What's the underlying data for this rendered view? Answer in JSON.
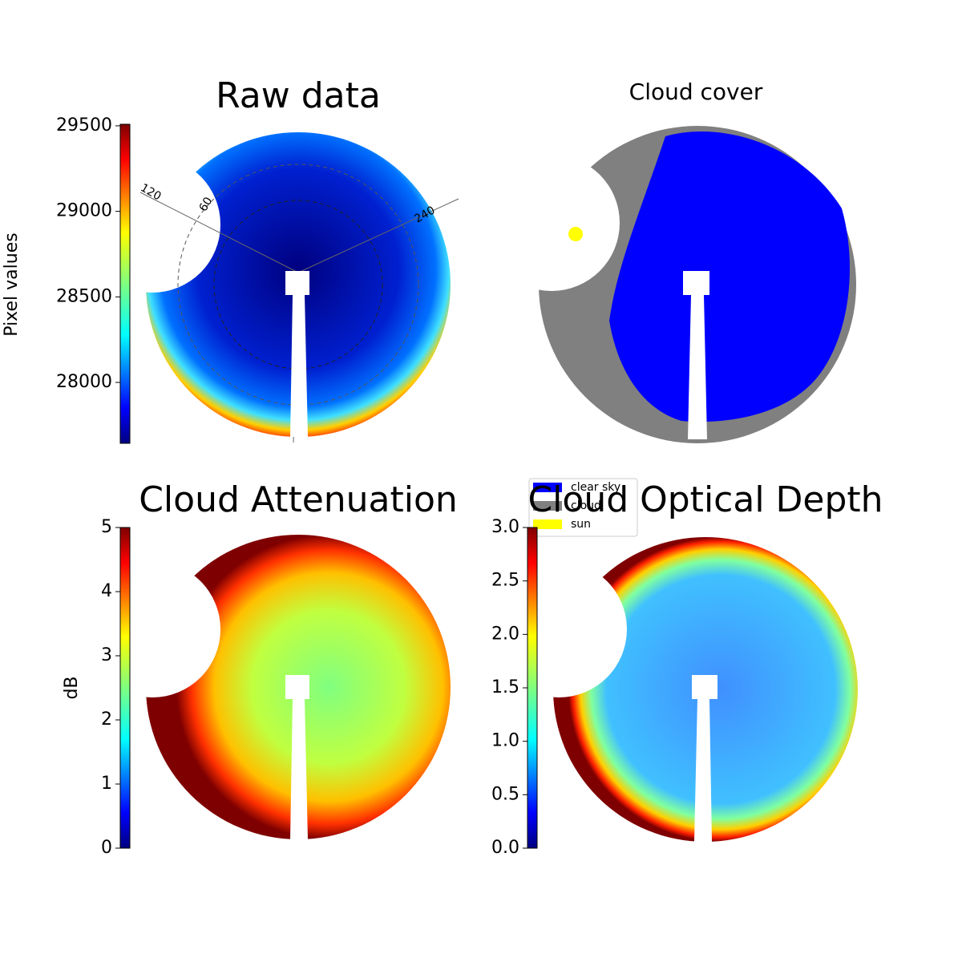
{
  "chart_data": [
    {
      "type": "image",
      "title": "Raw data",
      "ylabel": "Pixel values",
      "colormap": "jet",
      "ylim": [
        27644,
        29509
      ],
      "yticks": [
        28000,
        28500,
        29000,
        29500
      ],
      "annotations": [
        "120",
        "60",
        "240"
      ]
    },
    {
      "type": "image",
      "title": "Cloud cover",
      "series": [
        {
          "name": "clear sky",
          "color": "#0000ff"
        },
        {
          "name": "cloud",
          "color": "#808080"
        },
        {
          "name": "sun",
          "color": "#ffff00"
        }
      ]
    },
    {
      "type": "image",
      "title": "Cloud Attenuation",
      "ylabel": "dB",
      "colormap": "jet",
      "ylim": [
        0,
        5
      ],
      "yticks": [
        0,
        1,
        2,
        3,
        4,
        5
      ]
    },
    {
      "type": "image",
      "title": "Cloud Optical Depth",
      "colormap": "jet",
      "ylim": [
        0,
        3
      ],
      "yticks": [
        {
          "value": 0,
          "label": "0.0"
        },
        {
          "value": 0.5,
          "label": "0.5"
        },
        {
          "value": 1,
          "label": "1.0"
        },
        {
          "value": 1.5,
          "label": "1.5"
        },
        {
          "value": 2,
          "label": "2.0"
        },
        {
          "value": 2.5,
          "label": "2.5"
        },
        {
          "value": 3,
          "label": "3.0"
        }
      ]
    }
  ]
}
